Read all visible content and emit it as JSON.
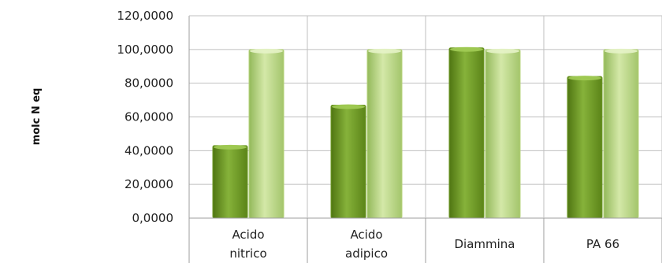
{
  "chart_data": {
    "type": "bar",
    "ylabel": "molc N eq",
    "categories": [
      [
        "Acido",
        "nitrico"
      ],
      [
        "Acido",
        "adipico"
      ],
      [
        "Diammina"
      ],
      [
        "PA 66"
      ]
    ],
    "series": [
      {
        "values": [
          43,
          67,
          101,
          84
        ],
        "color": "#6e9a24"
      },
      {
        "values": [
          100,
          100,
          100,
          100
        ],
        "color": "#b5d37a"
      }
    ],
    "ylim": [
      0,
      120
    ],
    "yticks": [
      "0,0000",
      "20,0000",
      "40,0000",
      "60,0000",
      "80,0000",
      "100,0000",
      "120,0000"
    ],
    "grid": true,
    "legend": "none"
  }
}
